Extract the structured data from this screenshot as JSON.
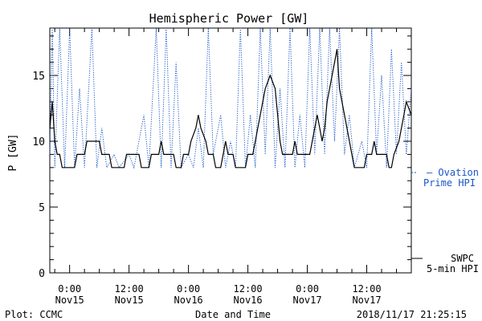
{
  "chart_data": {
    "type": "line",
    "title": "Hemispheric Power [GW]",
    "ylabel": "P [GW]",
    "xlabel": "Date and Time",
    "ylim": [
      0,
      18.6
    ],
    "xlim": [
      "2018-11-14T20:00",
      "2018-11-17T21:00"
    ],
    "yticks": [
      0,
      5,
      10,
      15
    ],
    "xticks": [
      {
        "t": "2018-11-15T00:00",
        "line1": "0:00",
        "line2": "Nov15"
      },
      {
        "t": "2018-11-15T12:00",
        "line1": "12:00",
        "line2": "Nov15"
      },
      {
        "t": "2018-11-16T00:00",
        "line1": "0:00",
        "line2": "Nov16"
      },
      {
        "t": "2018-11-16T12:00",
        "line1": "12:00",
        "line2": "Nov16"
      },
      {
        "t": "2018-11-17T00:00",
        "line1": "0:00",
        "line2": "Nov17"
      },
      {
        "t": "2018-11-17T12:00",
        "line1": "12:00",
        "line2": "Nov17"
      }
    ],
    "series": [
      {
        "name": "SWPC 5-min HPI",
        "color": "#000000",
        "style": "solid",
        "points": [
          [
            "2018-11-14T20:00",
            11
          ],
          [
            "2018-11-14T20:30",
            13
          ],
          [
            "2018-11-14T21:00",
            10
          ],
          [
            "2018-11-14T21:30",
            9
          ],
          [
            "2018-11-14T22:00",
            9
          ],
          [
            "2018-11-14T22:30",
            8
          ],
          [
            "2018-11-15T01:00",
            8
          ],
          [
            "2018-11-15T01:30",
            9
          ],
          [
            "2018-11-15T03:00",
            9
          ],
          [
            "2018-11-15T03:30",
            10
          ],
          [
            "2018-11-15T06:00",
            10
          ],
          [
            "2018-11-15T06:30",
            9
          ],
          [
            "2018-11-15T08:00",
            9
          ],
          [
            "2018-11-15T08:30",
            8
          ],
          [
            "2018-11-15T11:00",
            8
          ],
          [
            "2018-11-15T11:30",
            9
          ],
          [
            "2018-11-15T14:00",
            9
          ],
          [
            "2018-11-15T14:30",
            8
          ],
          [
            "2018-11-15T16:00",
            8
          ],
          [
            "2018-11-15T16:30",
            9
          ],
          [
            "2018-11-15T18:00",
            9
          ],
          [
            "2018-11-15T18:30",
            10
          ],
          [
            "2018-11-15T19:00",
            9
          ],
          [
            "2018-11-15T21:00",
            9
          ],
          [
            "2018-11-15T21:30",
            8
          ],
          [
            "2018-11-15T22:30",
            8
          ],
          [
            "2018-11-15T23:00",
            9
          ],
          [
            "2018-11-16T00:00",
            9
          ],
          [
            "2018-11-16T00:30",
            10
          ],
          [
            "2018-11-16T01:30",
            11
          ],
          [
            "2018-11-16T02:00",
            12
          ],
          [
            "2018-11-16T02:30",
            11
          ],
          [
            "2018-11-16T03:30",
            10
          ],
          [
            "2018-11-16T04:00",
            9
          ],
          [
            "2018-11-16T05:00",
            9
          ],
          [
            "2018-11-16T05:30",
            8
          ],
          [
            "2018-11-16T06:30",
            8
          ],
          [
            "2018-11-16T07:00",
            9
          ],
          [
            "2018-11-16T07:30",
            10
          ],
          [
            "2018-11-16T08:00",
            9
          ],
          [
            "2018-11-16T09:00",
            9
          ],
          [
            "2018-11-16T09:30",
            8
          ],
          [
            "2018-11-16T11:30",
            8
          ],
          [
            "2018-11-16T12:00",
            9
          ],
          [
            "2018-11-16T13:00",
            9
          ],
          [
            "2018-11-16T13:30",
            10
          ],
          [
            "2018-11-16T14:30",
            12
          ],
          [
            "2018-11-16T15:30",
            14
          ],
          [
            "2018-11-16T16:30",
            15
          ],
          [
            "2018-11-16T17:30",
            14
          ],
          [
            "2018-11-16T18:00",
            12
          ],
          [
            "2018-11-16T18:30",
            10
          ],
          [
            "2018-11-16T19:00",
            9
          ],
          [
            "2018-11-16T21:00",
            9
          ],
          [
            "2018-11-16T21:30",
            10
          ],
          [
            "2018-11-16T22:00",
            9
          ],
          [
            "2018-11-17T00:30",
            9
          ],
          [
            "2018-11-17T01:00",
            10
          ],
          [
            "2018-11-17T01:30",
            11
          ],
          [
            "2018-11-17T02:00",
            12
          ],
          [
            "2018-11-17T02:30",
            11
          ],
          [
            "2018-11-17T03:00",
            10
          ],
          [
            "2018-11-17T03:30",
            11
          ],
          [
            "2018-11-17T04:00",
            13
          ],
          [
            "2018-11-17T05:00",
            15
          ],
          [
            "2018-11-17T05:30",
            16
          ],
          [
            "2018-11-17T06:00",
            17
          ],
          [
            "2018-11-17T06:30",
            14
          ],
          [
            "2018-11-17T07:00",
            13
          ],
          [
            "2018-11-17T08:00",
            11
          ],
          [
            "2018-11-17T09:00",
            9
          ],
          [
            "2018-11-17T09:30",
            8
          ],
          [
            "2018-11-17T11:30",
            8
          ],
          [
            "2018-11-17T12:00",
            9
          ],
          [
            "2018-11-17T13:00",
            9
          ],
          [
            "2018-11-17T13:30",
            10
          ],
          [
            "2018-11-17T14:00",
            9
          ],
          [
            "2018-11-17T16:00",
            9
          ],
          [
            "2018-11-17T16:30",
            8
          ],
          [
            "2018-11-17T17:00",
            8
          ],
          [
            "2018-11-17T17:30",
            9
          ],
          [
            "2018-11-17T18:30",
            10
          ],
          [
            "2018-11-17T19:00",
            11
          ],
          [
            "2018-11-17T19:30",
            12
          ],
          [
            "2018-11-17T20:00",
            13
          ],
          [
            "2018-11-17T21:00",
            12
          ]
        ]
      },
      {
        "name": "Ovation Prime HPI",
        "color": "#1a56c8",
        "style": "dotted",
        "points": [
          [
            "2018-11-14T20:00",
            9
          ],
          [
            "2018-11-14T20:30",
            19
          ],
          [
            "2018-11-14T21:00",
            8
          ],
          [
            "2018-11-14T22:00",
            19
          ],
          [
            "2018-11-14T23:00",
            8
          ],
          [
            "2018-11-15T00:00",
            19
          ],
          [
            "2018-11-15T01:00",
            8
          ],
          [
            "2018-11-15T02:00",
            14
          ],
          [
            "2018-11-15T03:00",
            8
          ],
          [
            "2018-11-15T04:30",
            19
          ],
          [
            "2018-11-15T05:30",
            8
          ],
          [
            "2018-11-15T06:30",
            11
          ],
          [
            "2018-11-15T07:30",
            8
          ],
          [
            "2018-11-15T09:00",
            9
          ],
          [
            "2018-11-15T10:00",
            8
          ],
          [
            "2018-11-15T12:00",
            9
          ],
          [
            "2018-11-15T13:00",
            8
          ],
          [
            "2018-11-15T15:00",
            12
          ],
          [
            "2018-11-15T16:00",
            8
          ],
          [
            "2018-11-15T17:30",
            19
          ],
          [
            "2018-11-15T18:30",
            8
          ],
          [
            "2018-11-15T19:30",
            19
          ],
          [
            "2018-11-15T20:30",
            8
          ],
          [
            "2018-11-15T21:30",
            16
          ],
          [
            "2018-11-15T22:30",
            8
          ],
          [
            "2018-11-16T00:00",
            9
          ],
          [
            "2018-11-16T01:00",
            8
          ],
          [
            "2018-11-16T02:00",
            11
          ],
          [
            "2018-11-16T03:00",
            8
          ],
          [
            "2018-11-16T04:00",
            19
          ],
          [
            "2018-11-16T05:00",
            9
          ],
          [
            "2018-11-16T06:30",
            12
          ],
          [
            "2018-11-16T07:30",
            8
          ],
          [
            "2018-11-16T08:30",
            10
          ],
          [
            "2018-11-16T09:30",
            8
          ],
          [
            "2018-11-16T10:30",
            19
          ],
          [
            "2018-11-16T11:30",
            8
          ],
          [
            "2018-11-16T12:30",
            12
          ],
          [
            "2018-11-16T13:30",
            8
          ],
          [
            "2018-11-16T14:30",
            19
          ],
          [
            "2018-11-16T15:30",
            9
          ],
          [
            "2018-11-16T16:30",
            19
          ],
          [
            "2018-11-16T17:30",
            8
          ],
          [
            "2018-11-16T18:30",
            14
          ],
          [
            "2018-11-16T19:30",
            8
          ],
          [
            "2018-11-16T20:30",
            19
          ],
          [
            "2018-11-16T21:30",
            8
          ],
          [
            "2018-11-16T22:30",
            12
          ],
          [
            "2018-11-16T23:30",
            8
          ],
          [
            "2018-11-17T00:30",
            19
          ],
          [
            "2018-11-17T01:30",
            9
          ],
          [
            "2018-11-17T02:30",
            19
          ],
          [
            "2018-11-17T03:30",
            9
          ],
          [
            "2018-11-17T04:30",
            19
          ],
          [
            "2018-11-17T05:30",
            10
          ],
          [
            "2018-11-17T06:30",
            19
          ],
          [
            "2018-11-17T07:30",
            9
          ],
          [
            "2018-11-17T08:30",
            12
          ],
          [
            "2018-11-17T09:30",
            8
          ],
          [
            "2018-11-17T11:00",
            10
          ],
          [
            "2018-11-17T12:00",
            8
          ],
          [
            "2018-11-17T13:00",
            19
          ],
          [
            "2018-11-17T14:00",
            9
          ],
          [
            "2018-11-17T15:00",
            15
          ],
          [
            "2018-11-17T16:00",
            8
          ],
          [
            "2018-11-17T17:00",
            17
          ],
          [
            "2018-11-17T18:00",
            9
          ],
          [
            "2018-11-17T19:00",
            16
          ],
          [
            "2018-11-17T20:00",
            9
          ],
          [
            "2018-11-17T21:00",
            14
          ]
        ]
      }
    ],
    "legend": {
      "placement": "right, outside plot",
      "ovation_line1": "— Ovation",
      "ovation_line2": "Prime HPI",
      "swpc_line1": "SWPC",
      "swpc_line2": "5-min HPI"
    },
    "footer_left": "Plot: CCMC",
    "footer_right": "2018/11/17 21:25:15"
  }
}
